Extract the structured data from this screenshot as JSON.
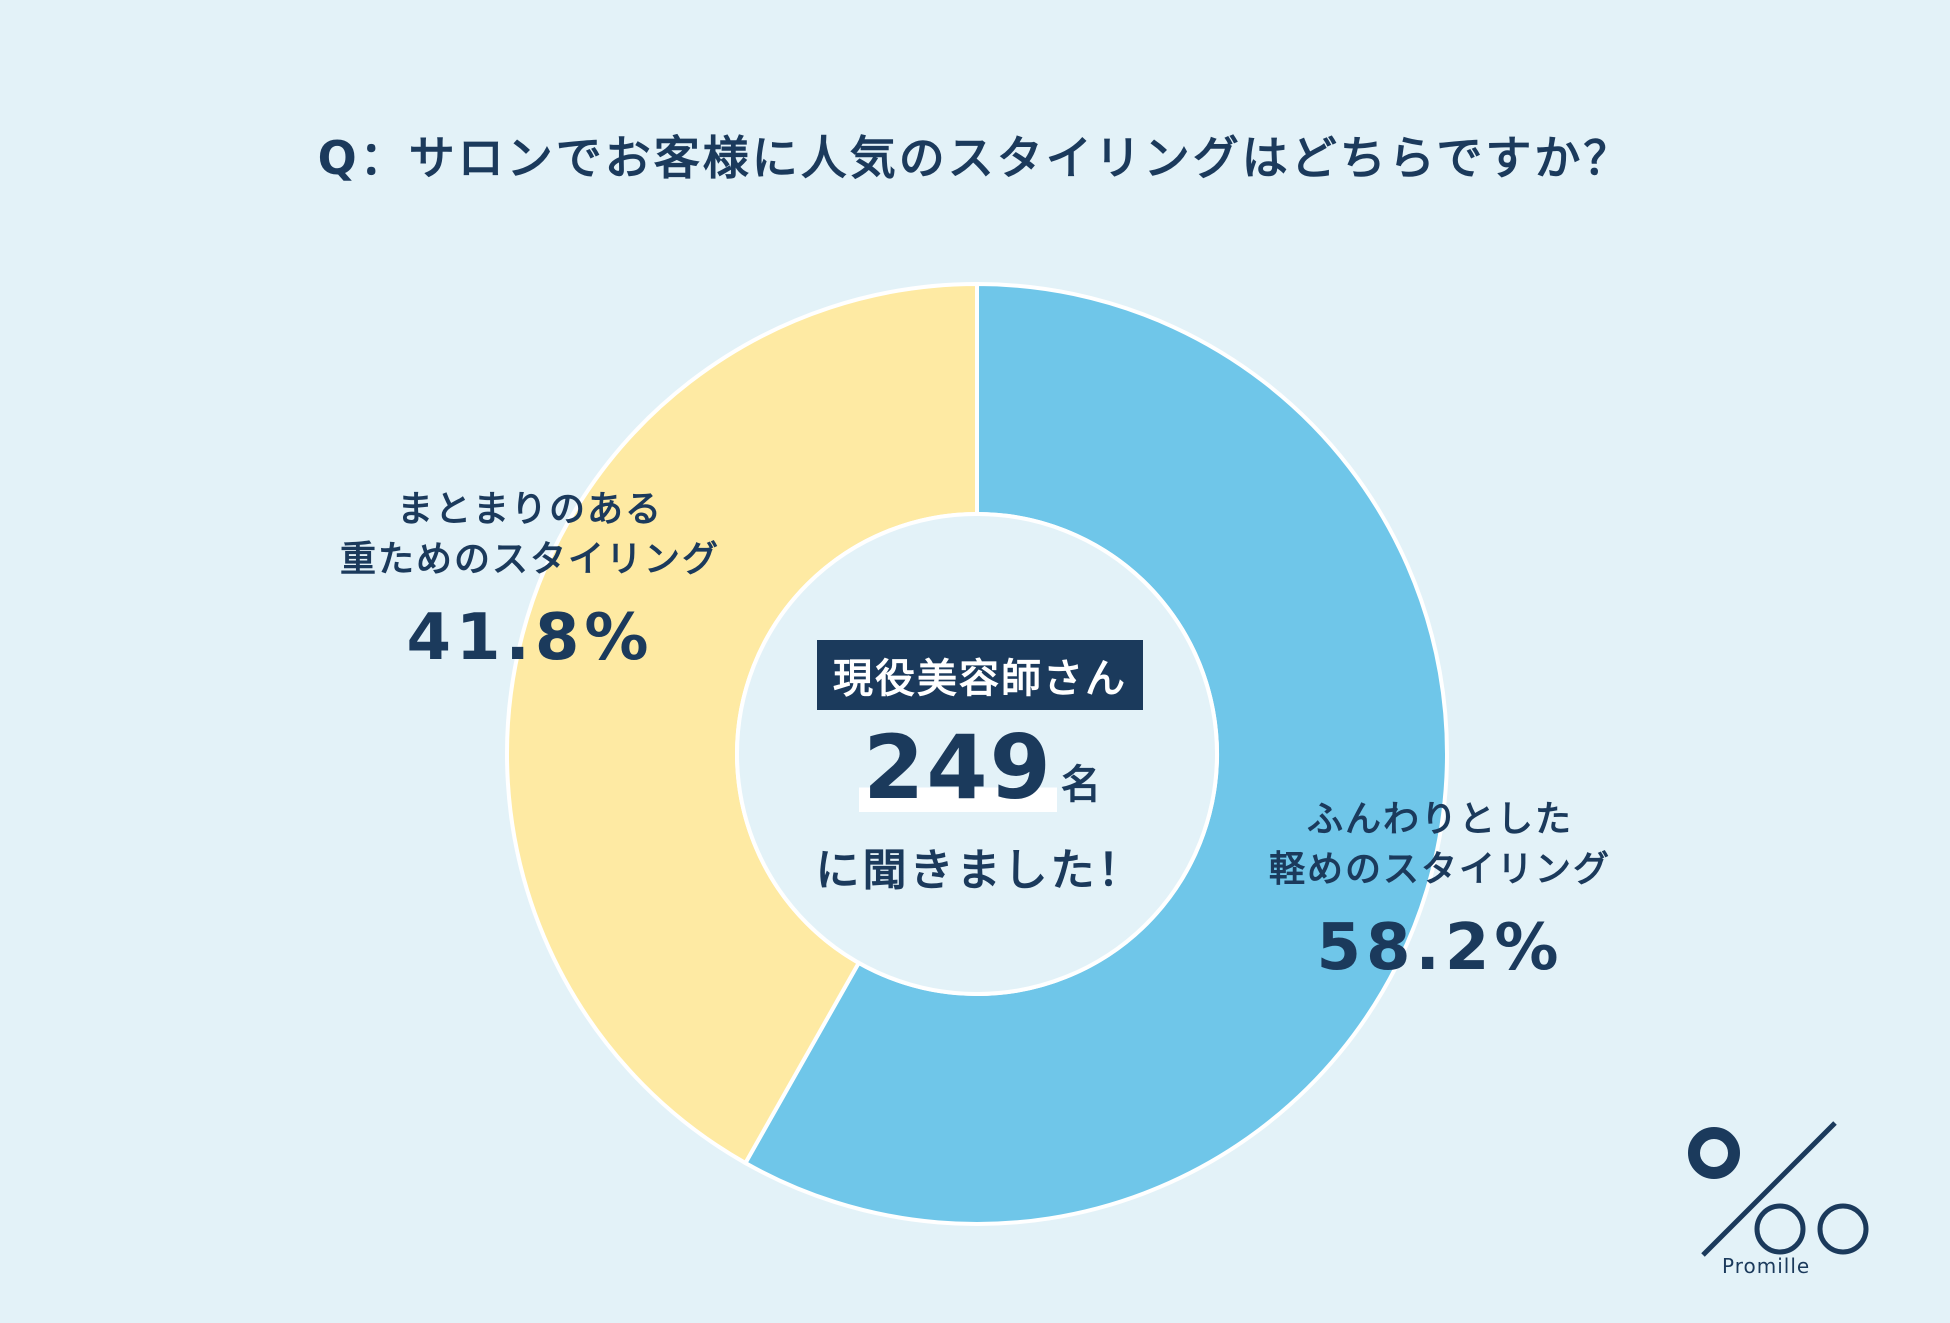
{
  "header": {
    "question": "Q：サロンでお客様に人気のスタイリングはどちらですか？"
  },
  "center": {
    "badge": "現役美容師さん",
    "count": "249",
    "unit": "名",
    "asked": "に聞きました！"
  },
  "logo": {
    "text": "Promille"
  },
  "colors": {
    "light_blue": "#6fc6e9",
    "light_yellow": "#feeaa3",
    "navy": "#1b3a5c",
    "background": "#e3f2f8"
  },
  "chart_data": {
    "type": "pie",
    "donut": true,
    "title": "Q：サロンでお客様に人気のスタイリングはどちらですか？",
    "series": [
      {
        "name": "ふんわりとした軽めのスタイリング",
        "name_lines": [
          "ふんわりとした",
          "軽めのスタイリング"
        ],
        "value": 58.2,
        "label": "58.2%",
        "color": "#6fc6e9"
      },
      {
        "name": "まとまりのある重ためのスタイリング",
        "name_lines": [
          "まとまりのある",
          "重ためのスタイリング"
        ],
        "value": 41.8,
        "label": "41.8%",
        "color": "#feeaa3"
      }
    ]
  }
}
